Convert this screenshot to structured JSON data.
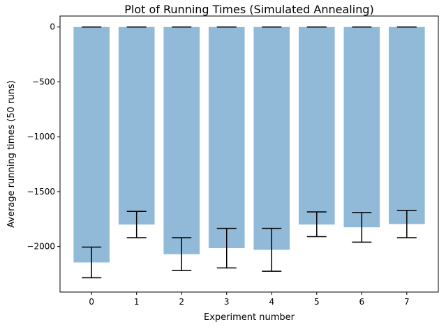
{
  "chart_data": {
    "type": "bar",
    "title": "Plot of Running Times (Simulated Annealing)",
    "xlabel": "Experiment number",
    "ylabel": "Average running times (50 runs)",
    "categories": [
      "0",
      "1",
      "2",
      "3",
      "4",
      "5",
      "6",
      "7"
    ],
    "values": [
      -2145,
      -1800,
      -2070,
      -2015,
      -2030,
      -1800,
      -1825,
      -1795
    ],
    "error_bars": {
      "lower": [
        -2285,
        -1920,
        -2220,
        -2195,
        -2225,
        -1910,
        -1960,
        -1920
      ],
      "upper": [
        -2005,
        -1680,
        -1920,
        -1835,
        -1835,
        -1685,
        -1690,
        -1670
      ]
    },
    "baseline_caps": [
      0,
      0,
      0,
      0,
      0,
      0,
      0,
      0
    ],
    "ylim": [
      -2415,
      100
    ],
    "yticks": [
      0,
      -500,
      -1000,
      -1500,
      -2000
    ],
    "ytick_labels": [
      "0",
      "−500",
      "−1000",
      "−1500",
      "−2000"
    ],
    "grid": false,
    "bar_color": "#91bad9",
    "errorbar_color": "#000000"
  }
}
